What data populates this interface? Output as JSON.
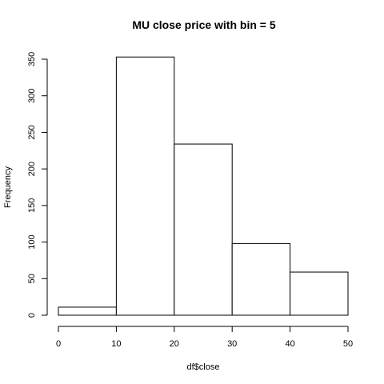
{
  "chart_data": {
    "type": "bar",
    "title": "MU close price with bin = 5",
    "xlabel": "df$close",
    "ylabel": "Frequency",
    "bins": [
      {
        "from": 0,
        "to": 10,
        "value": 11
      },
      {
        "from": 10,
        "to": 20,
        "value": 353
      },
      {
        "from": 20,
        "to": 30,
        "value": 234
      },
      {
        "from": 30,
        "to": 40,
        "value": 98
      },
      {
        "from": 40,
        "to": 50,
        "value": 59
      }
    ],
    "xlim": [
      0,
      50
    ],
    "ylim": [
      0,
      350
    ],
    "xticks": [
      0,
      10,
      20,
      30,
      40,
      50
    ],
    "yticks": [
      0,
      50,
      100,
      150,
      200,
      250,
      300,
      350
    ],
    "grid": false,
    "legend": "none"
  }
}
